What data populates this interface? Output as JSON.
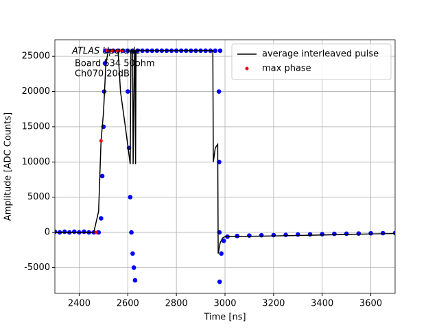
{
  "chart_data": {
    "type": "line",
    "annotation": [
      "ATLAS Upgrade",
      "Board 534 50ohm",
      "Ch070 20dB"
    ],
    "x_label": "Time [ns]",
    "y_label": "Amplitude [ADC Counts]",
    "xlim": [
      2300,
      3700
    ],
    "ylim": [
      -8650,
      27350
    ],
    "xticks": [
      2400,
      2600,
      2800,
      3000,
      3200,
      3400,
      3600
    ],
    "yticks": [
      -5000,
      0,
      5000,
      10000,
      15000,
      20000,
      25000
    ],
    "grid": true,
    "legend": "upper right",
    "series": [
      {
        "type": "scatter",
        "color": "#0000ff",
        "x": [
          2300,
          2320,
          2340,
          2360,
          2380,
          2400,
          2420,
          2440,
          2460,
          2480,
          2490,
          2495,
          2500,
          2503,
          2506,
          2510,
          2520,
          2540,
          2560,
          2580,
          2600,
          2620,
          2640,
          2660,
          2680,
          2700,
          2720,
          2740,
          2760,
          2780,
          2800,
          2820,
          2840,
          2860,
          2880,
          2900,
          2920,
          2940,
          2960,
          2980,
          2600,
          2605,
          2610,
          2615,
          2620,
          2625,
          2630,
          2975,
          2976,
          2977,
          2978,
          2985,
          2995,
          3010,
          3050,
          3100,
          3150,
          3200,
          3250,
          3300,
          3350,
          3400,
          3450,
          3500,
          3550,
          3600,
          3650,
          3700
        ],
        "values": [
          100,
          0,
          100,
          0,
          100,
          0,
          100,
          0,
          0,
          0,
          2000,
          8000,
          15000,
          20000,
          24000,
          25800,
          25800,
          25800,
          25800,
          25800,
          25800,
          25800,
          25800,
          25800,
          25800,
          25800,
          25800,
          25800,
          25800,
          25800,
          25800,
          25800,
          25800,
          25800,
          25800,
          25800,
          25800,
          25800,
          25800,
          25800,
          20000,
          12000,
          5000,
          0,
          -3000,
          -5000,
          -6800,
          20000,
          10000,
          0,
          -7000,
          -3000,
          -1200,
          -600,
          -500,
          -450,
          -400,
          -380,
          -350,
          -300,
          -280,
          -250,
          -200,
          -180,
          -150,
          -120,
          -100,
          -80
        ]
      },
      {
        "name": "average interleaved pulse",
        "type": "line",
        "color": "#000000",
        "x": [
          2300,
          2460,
          2480,
          2490,
          2500,
          2510,
          2520,
          2560,
          2570,
          2590,
          2610,
          2613,
          2620,
          2622,
          2628,
          2630,
          2632,
          2634,
          2950,
          2952,
          2960,
          2970,
          2972,
          2980,
          2990,
          3000,
          3200,
          3700
        ],
        "values": [
          0,
          0,
          3000,
          13000,
          17000,
          24000,
          25800,
          25800,
          20000,
          15000,
          9700,
          25800,
          25800,
          9700,
          25800,
          25800,
          9700,
          25800,
          25800,
          10000,
          12000,
          12500,
          -3000,
          -1500,
          -800,
          -600,
          -500,
          -150
        ]
      },
      {
        "name": "max phase",
        "type": "scatter",
        "color": "#ff0000",
        "x": [
          2470,
          2490,
          2515,
          2535,
          2555,
          2575
        ],
        "values": [
          0,
          13000,
          25800,
          25800,
          25800,
          25800
        ]
      }
    ]
  }
}
